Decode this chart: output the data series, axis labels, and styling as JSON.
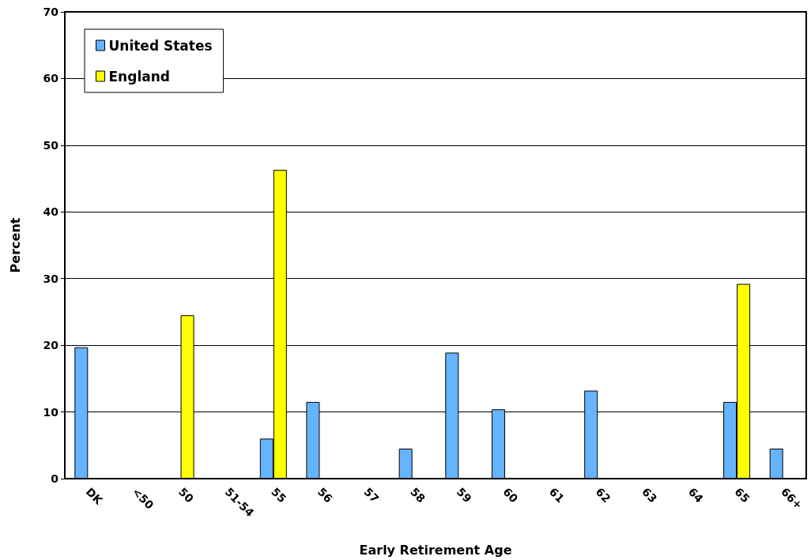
{
  "chart_data": {
    "type": "bar",
    "xlabel": "Early Retirement Age",
    "ylabel": "Percent",
    "categories": [
      "DK",
      "<50",
      "50",
      "51-54",
      "55",
      "56",
      "57",
      "58",
      "59",
      "60",
      "61",
      "62",
      "63",
      "64",
      "65",
      "66+"
    ],
    "series": [
      {
        "name": "United States",
        "color": "#66b3ff",
        "values": [
          19.7,
          0,
          0,
          0,
          6.0,
          11.5,
          0,
          4.5,
          18.9,
          10.4,
          0,
          13.2,
          0,
          0,
          11.5,
          4.5
        ]
      },
      {
        "name": "England",
        "color": "#ffff00",
        "values": [
          0,
          0,
          24.5,
          0,
          46.3,
          0,
          0,
          0,
          0,
          0,
          0,
          0,
          0,
          0,
          29.2,
          0
        ]
      }
    ],
    "ylim": [
      0,
      70
    ],
    "yticks": [
      0,
      10,
      20,
      30,
      40,
      50,
      60,
      70
    ],
    "grid": "y",
    "legend": "top left"
  }
}
